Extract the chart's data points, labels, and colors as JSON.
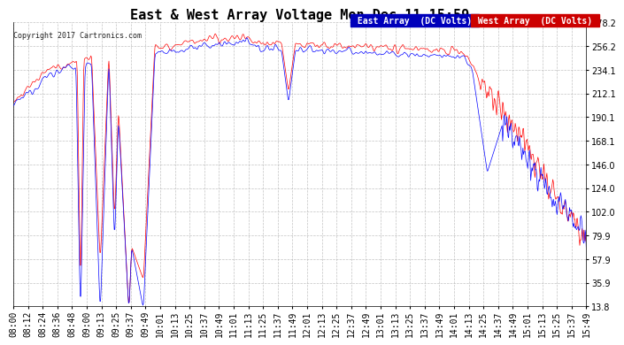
{
  "title": "East & West Array Voltage Mon Dec 11 15:59",
  "copyright": "Copyright 2017 Cartronics.com",
  "legend_east": "East Array  (DC Volts)",
  "legend_west": "West Array  (DC Volts)",
  "east_color": "#0000ff",
  "west_color": "#ff0000",
  "legend_east_bg": "#0000bb",
  "legend_west_bg": "#cc0000",
  "ymin": 13.8,
  "ymax": 278.2,
  "yticks": [
    13.8,
    35.9,
    57.9,
    79.9,
    102.0,
    124.0,
    146.0,
    168.1,
    190.1,
    212.1,
    234.1,
    256.2,
    278.2
  ],
  "x_labels": [
    "08:00",
    "08:12",
    "08:24",
    "08:36",
    "08:48",
    "09:00",
    "09:13",
    "09:25",
    "09:37",
    "09:49",
    "10:01",
    "10:13",
    "10:25",
    "10:37",
    "10:49",
    "11:01",
    "11:13",
    "11:25",
    "11:37",
    "11:49",
    "12:01",
    "12:13",
    "12:25",
    "12:37",
    "12:49",
    "13:01",
    "13:13",
    "13:25",
    "13:37",
    "13:49",
    "14:01",
    "14:13",
    "14:25",
    "14:37",
    "14:49",
    "15:01",
    "15:13",
    "15:25",
    "15:37",
    "15:49"
  ],
  "background_color": "#ffffff",
  "plot_bg_color": "#ffffff",
  "grid_color": "#aaaaaa",
  "title_fontsize": 11,
  "tick_fontsize": 7,
  "copyright_fontsize": 6,
  "legend_fontsize": 7
}
